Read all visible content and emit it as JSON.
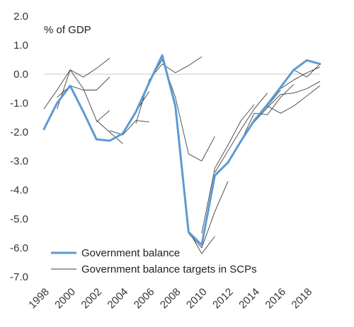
{
  "chart_data": {
    "type": "line",
    "title": "",
    "unit_label": "% of GDP",
    "xlabel": "",
    "ylabel": "",
    "ylim": [
      -7.0,
      2.0
    ],
    "yticks": [
      "2.0",
      "1.0",
      "0.0",
      "-1.0",
      "-2.0",
      "-3.0",
      "-4.0",
      "-5.0",
      "-6.0",
      "-7.0"
    ],
    "xlim": [
      1998,
      2019
    ],
    "xticks": [
      "1998",
      "2000",
      "2002",
      "2004",
      "2006",
      "2008",
      "2010",
      "2012",
      "2014",
      "2016",
      "2018"
    ],
    "grid": false,
    "zero_line": true,
    "legend_position": "bottom-left",
    "series": [
      {
        "name": "Government balance",
        "color": "#5b9bd5",
        "style": "thick",
        "points": [
          [
            1998,
            -1.9
          ],
          [
            1999,
            -1.0
          ],
          [
            2000,
            -0.4
          ],
          [
            2001,
            -1.3
          ],
          [
            2002,
            -2.25
          ],
          [
            2003,
            -2.3
          ],
          [
            2004,
            -2.05
          ],
          [
            2005,
            -1.3
          ],
          [
            2006,
            -0.3
          ],
          [
            2007,
            0.65
          ],
          [
            2008,
            -1.1
          ],
          [
            2009,
            -5.45
          ],
          [
            2010,
            -5.9
          ],
          [
            2011,
            -3.5
          ],
          [
            2012,
            -3.05
          ],
          [
            2013,
            -2.3
          ],
          [
            2014,
            -1.6
          ],
          [
            2015,
            -1.05
          ],
          [
            2016,
            -0.45
          ],
          [
            2017,
            0.15
          ],
          [
            2018,
            0.48
          ],
          [
            2019,
            0.35
          ]
        ]
      }
    ],
    "targets": {
      "name": "Government balance targets in SCPs",
      "color": "#404040",
      "lines": [
        [
          [
            1998,
            -1.2
          ],
          [
            1999,
            -0.55
          ],
          [
            2000,
            0.15
          ],
          [
            2001,
            -0.1
          ],
          [
            2002,
            0.2
          ],
          [
            2003,
            0.55
          ]
        ],
        [
          [
            1999,
            -0.8
          ],
          [
            2000,
            -0.4
          ],
          [
            2001,
            -0.55
          ],
          [
            2002,
            -0.55
          ],
          [
            2003,
            -0.1
          ]
        ],
        [
          [
            1999,
            -1.2
          ],
          [
            2000,
            0.15
          ],
          [
            2001,
            -0.5
          ],
          [
            2002,
            -1.6
          ],
          [
            2003,
            -2.0
          ],
          [
            2004,
            -2.4
          ]
        ],
        [
          [
            2002,
            -1.65
          ],
          [
            2003,
            -1.25
          ]
        ],
        [
          [
            2003,
            -1.95
          ],
          [
            2004,
            -2.1
          ],
          [
            2005,
            -1.6
          ],
          [
            2006,
            -1.65
          ]
        ],
        [
          [
            2004,
            -2.05
          ],
          [
            2005,
            -1.3
          ],
          [
            2006,
            -0.6
          ]
        ],
        [
          [
            2005,
            -1.7
          ],
          [
            2006,
            -0.2
          ],
          [
            2007,
            0.35
          ],
          [
            2008,
            0.05
          ],
          [
            2009,
            0.3
          ],
          [
            2010,
            0.6
          ]
        ],
        [
          [
            2006,
            -0.25
          ],
          [
            2007,
            0.5
          ],
          [
            2008,
            -0.8
          ],
          [
            2009,
            -2.75
          ],
          [
            2010,
            -3.0
          ],
          [
            2011,
            -2.15
          ]
        ],
        [
          [
            2007,
            0.65
          ],
          [
            2008,
            -1.2
          ],
          [
            2009,
            -5.4
          ],
          [
            2010,
            -6.2
          ],
          [
            2011,
            -5.6
          ]
        ],
        [
          [
            2009,
            -5.5
          ],
          [
            2010,
            -6.0
          ],
          [
            2011,
            -4.75
          ],
          [
            2012,
            -3.7
          ]
        ],
        [
          [
            2010,
            -5.5
          ],
          [
            2011,
            -3.25
          ],
          [
            2012,
            -2.45
          ],
          [
            2013,
            -1.6
          ],
          [
            2014,
            -1.05
          ]
        ],
        [
          [
            2011,
            -3.4
          ],
          [
            2012,
            -2.65
          ],
          [
            2013,
            -1.9
          ],
          [
            2014,
            -1.2
          ],
          [
            2015,
            -0.65
          ]
        ],
        [
          [
            2012,
            -3.1
          ],
          [
            2013,
            -2.3
          ],
          [
            2014,
            -1.6
          ],
          [
            2015,
            -1.1
          ],
          [
            2016,
            -0.55
          ]
        ],
        [
          [
            2013,
            -2.3
          ],
          [
            2014,
            -1.35
          ],
          [
            2015,
            -1.4
          ],
          [
            2016,
            -0.8
          ],
          [
            2017,
            -0.35
          ]
        ],
        [
          [
            2014,
            -1.65
          ],
          [
            2015,
            -1.15
          ],
          [
            2016,
            -0.7
          ],
          [
            2017,
            -0.65
          ],
          [
            2018,
            -0.5
          ],
          [
            2019,
            -0.25
          ]
        ],
        [
          [
            2015,
            -1.1
          ],
          [
            2016,
            -1.35
          ],
          [
            2017,
            -1.1
          ],
          [
            2018,
            -0.75
          ],
          [
            2019,
            -0.4
          ]
        ],
        [
          [
            2016,
            -0.5
          ],
          [
            2017,
            -0.2
          ],
          [
            2018,
            0.05
          ],
          [
            2019,
            0.25
          ]
        ],
        [
          [
            2017,
            0.15
          ],
          [
            2018,
            -0.1
          ],
          [
            2019,
            0.35
          ]
        ]
      ]
    }
  }
}
